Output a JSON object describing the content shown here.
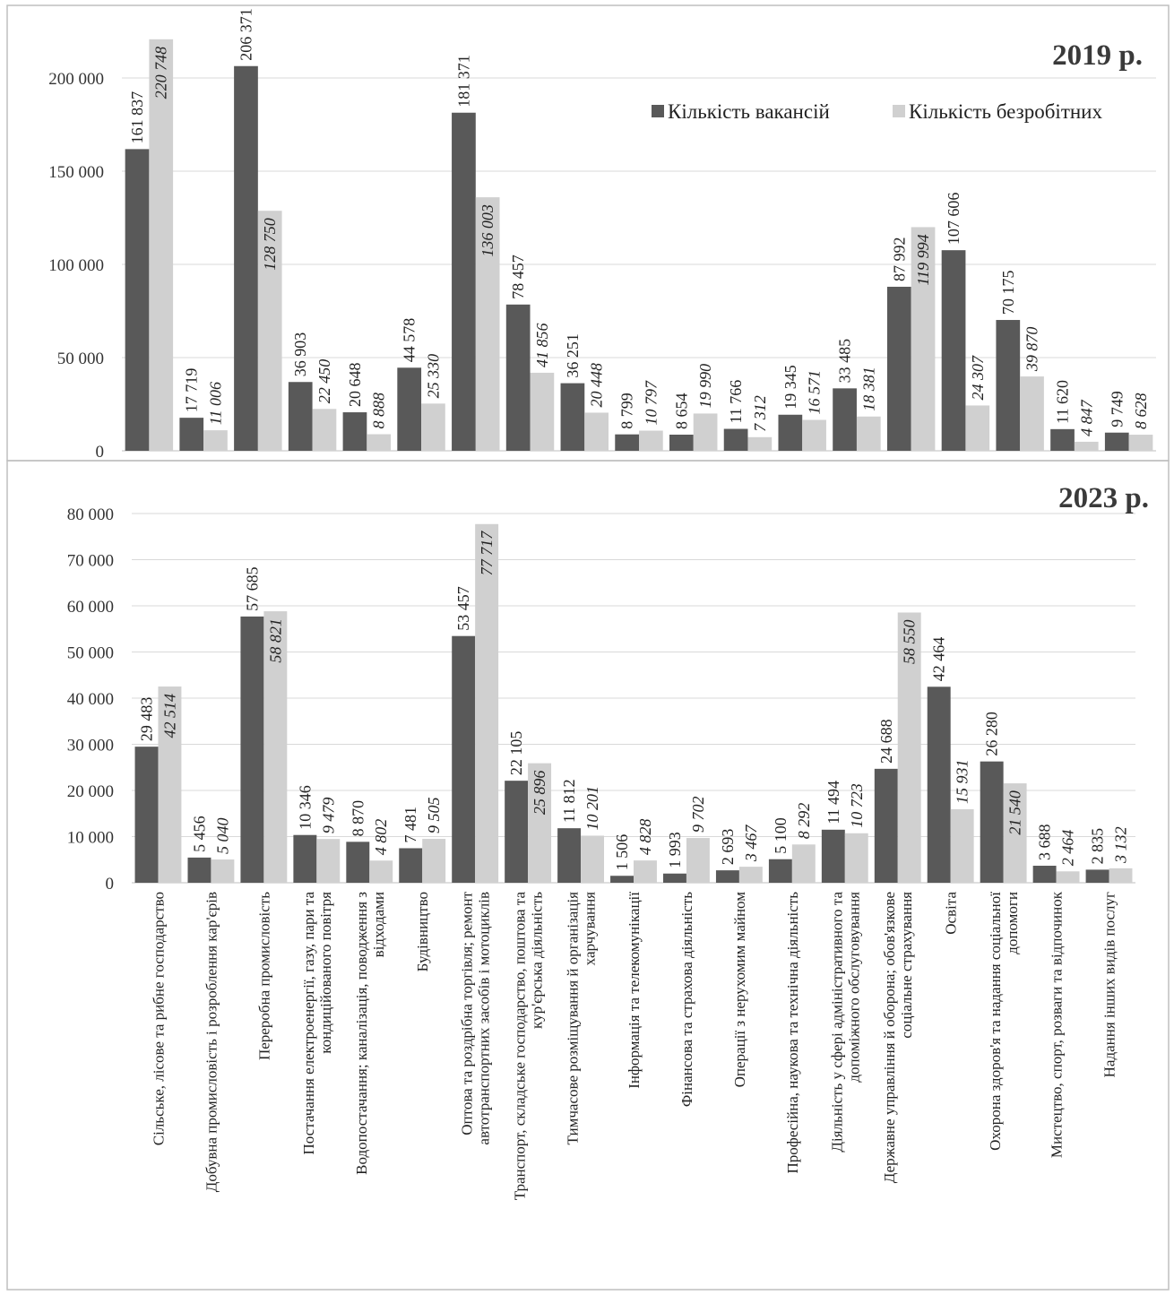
{
  "legend": {
    "vacancies_label": "Кількість вакансій",
    "unemployed_label": "Кількість безробітних",
    "vacancies_color": "#595959",
    "unemployed_color": "#d0d0d0"
  },
  "categories": [
    [
      "Сільське, лісове та рибне господарство"
    ],
    [
      "Добувна промисловість і розроблення кар'єрів"
    ],
    [
      "Переробна промисловість"
    ],
    [
      "Постачання електроенергії, газу, пари та",
      "кондиційованого повітря"
    ],
    [
      "Водопостачання; каналізація, поводження з",
      "відходами"
    ],
    [
      "Будівництво"
    ],
    [
      "Оптова та роздрібна торгівля; ремонт",
      "автотранспортних засобів і мотоциклів"
    ],
    [
      "Транспорт, складське господарство, поштова та",
      "кур'єрська діяльність"
    ],
    [
      "Тимчасове розміщування й організація",
      "харчування"
    ],
    [
      "Інформація та телекомунікації"
    ],
    [
      "Фінансова та страхова діяльність"
    ],
    [
      "Операції з нерухомим майном"
    ],
    [
      "Професійна, наукова та технічна діяльність"
    ],
    [
      "Діяльність у сфері адміністративного та",
      "допоміжного обслуговування"
    ],
    [
      "Державне управління й оборона; обов'язкове",
      "соціальне страхування"
    ],
    [
      "Освіта"
    ],
    [
      "Охорона здоров'я та надання соціальної",
      "допомоги"
    ],
    [
      "Мистецтво, спорт, розваги та відпочинок"
    ],
    [
      "Надання інших видів послуг"
    ]
  ],
  "chart_data": [
    {
      "type": "bar",
      "title": "2019 р.",
      "ylim": [
        0,
        220748
      ],
      "yticks": [
        0,
        50000,
        100000,
        150000,
        200000
      ],
      "ytick_labels": [
        "0",
        "50 000",
        "100 000",
        "150 000",
        "200 000"
      ],
      "grid": true,
      "legend_position": "top-right",
      "series": [
        {
          "name": "Кількість вакансій",
          "values": [
            161837,
            17719,
            206371,
            36903,
            20648,
            44578,
            181371,
            78457,
            36251,
            8799,
            8654,
            11766,
            19345,
            33485,
            87992,
            107606,
            70175,
            11620,
            9749
          ],
          "labels": [
            "161 837",
            "17 719",
            "206 371",
            "36 903",
            "20 648",
            "44 578",
            "181 371",
            "78 457",
            "36 251",
            "8 799",
            "8 654",
            "11 766",
            "19 345",
            "33 485",
            "87 992",
            "107 606",
            "70 175",
            "11 620",
            "9 749"
          ]
        },
        {
          "name": "Кількість безробітних",
          "values": [
            220748,
            11006,
            128750,
            22450,
            8888,
            25330,
            136003,
            41856,
            20448,
            10797,
            19990,
            7312,
            16571,
            18381,
            119994,
            24307,
            39870,
            4847,
            8628
          ],
          "labels": [
            "220 748",
            "11 006",
            "128 750",
            "22 450",
            "8 888",
            "25 330",
            "136 003",
            "41 856",
            "20 448",
            "10 797",
            "19 990",
            "7 312",
            "16 571",
            "18 381",
            "119 994",
            "24 307",
            "39 870",
            "4 847",
            "8 628"
          ]
        }
      ]
    },
    {
      "type": "bar",
      "title": "2023 р.",
      "ylim": [
        0,
        80000
      ],
      "yticks": [
        0,
        10000,
        20000,
        30000,
        40000,
        50000,
        60000,
        70000,
        80000
      ],
      "ytick_labels": [
        "0",
        "10 000",
        "20 000",
        "30 000",
        "40 000",
        "50 000",
        "60 000",
        "70 000",
        "80 000"
      ],
      "grid": true,
      "series": [
        {
          "name": "Кількість вакансій",
          "values": [
            29483,
            5456,
            57685,
            10346,
            8870,
            7481,
            53457,
            22105,
            11812,
            1506,
            1993,
            2693,
            5100,
            11494,
            24688,
            42464,
            26280,
            3688,
            2835
          ],
          "labels": [
            "29 483",
            "5 456",
            "57 685",
            "10 346",
            "8 870",
            "7 481",
            "53 457",
            "22 105",
            "11 812",
            "1 506",
            "1 993",
            "2 693",
            "5 100",
            "11 494",
            "24 688",
            "42 464",
            "26 280",
            "3 688",
            "2 835"
          ]
        },
        {
          "name": "Кількість безробітних",
          "values": [
            42514,
            5040,
            58821,
            9479,
            4802,
            9505,
            77717,
            25896,
            10201,
            4828,
            9702,
            3467,
            8292,
            10723,
            58550,
            15931,
            21540,
            2464,
            3132
          ],
          "labels": [
            "42 514",
            "5 040",
            "58 821",
            "9 479",
            "4 802",
            "9 505",
            "77 717",
            "25 896",
            "10 201",
            "4 828",
            "9 702",
            "3 467",
            "8 292",
            "10 723",
            "58 550",
            "15 931",
            "21 540",
            "2 464",
            "3 132"
          ]
        }
      ]
    }
  ]
}
